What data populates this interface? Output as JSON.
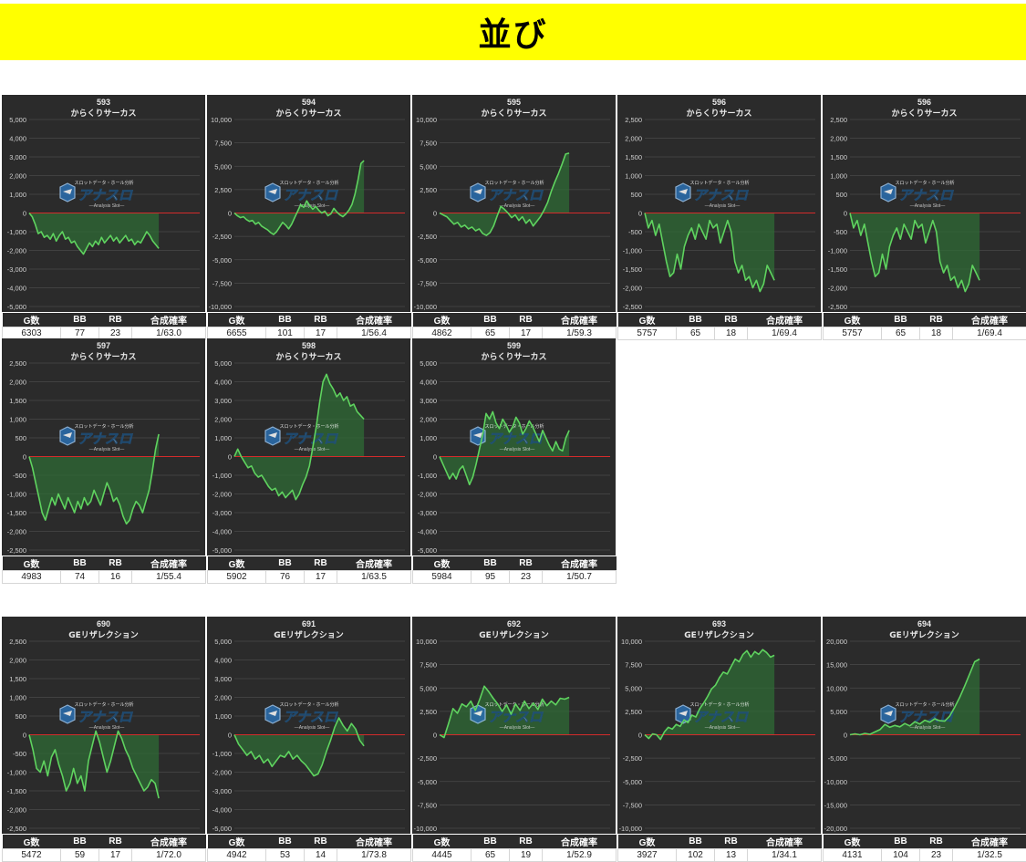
{
  "header": {
    "title": "並び"
  },
  "stats_headers": [
    "G数",
    "BB",
    "RB",
    "合成確率"
  ],
  "watermark": {
    "top": "スロットデータ・ホール分析",
    "main": "アナスロ",
    "sub": "―Analysis Slot―"
  },
  "colors": {
    "panel_bg": "#2b2b2b",
    "grid": "#4a4a4a",
    "line": "#5fd35f",
    "fill": "#2f6b35",
    "zero_line": "#d42b2b",
    "header_bg": "#ffff00"
  },
  "chart_data": [
    {
      "type": "area",
      "number": "593",
      "machine": "からくりサーカス",
      "ylim": [
        -5000,
        5000
      ],
      "yticks": [
        "5,000",
        "4,000",
        "3,000",
        "2,000",
        "1,000",
        "0",
        "-1,000",
        "-2,000",
        "-3,000",
        "-4,000",
        "-5,000"
      ],
      "values": [
        0,
        -200,
        -600,
        -1100,
        -1000,
        -1300,
        -1200,
        -1400,
        -1100,
        -1500,
        -1200,
        -1000,
        -1400,
        -1300,
        -1600,
        -1500,
        -1800,
        -2000,
        -2200,
        -1900,
        -1600,
        -1800,
        -1500,
        -1700,
        -1300,
        -1600,
        -1400,
        -1200,
        -1500,
        -1300,
        -1600,
        -1400,
        -1200,
        -1500,
        -1400,
        -1700,
        -1500,
        -1600,
        -1300,
        -1000,
        -1200,
        -1500,
        -1700,
        -1900
      ],
      "stats": {
        "games": "6303",
        "bb": "77",
        "rb": "23",
        "rate": "1/63.0"
      }
    },
    {
      "type": "area",
      "number": "594",
      "machine": "からくりサーカス",
      "ylim": [
        -10000,
        10000
      ],
      "yticks": [
        "10,000",
        "7,500",
        "5,000",
        "2,500",
        "0",
        "-2,500",
        "-5,000",
        "-7,500",
        "-10,000"
      ],
      "values": [
        0,
        -300,
        -500,
        -400,
        -700,
        -900,
        -800,
        -1200,
        -1000,
        -1400,
        -1600,
        -1800,
        -2100,
        -2300,
        -2000,
        -1500,
        -1000,
        -1300,
        -1700,
        -1200,
        -500,
        200,
        900,
        600,
        1300,
        800,
        400,
        700,
        300,
        0,
        200,
        -300,
        -100,
        500,
        100,
        -200,
        -400,
        -100,
        300,
        900,
        2000,
        3500,
        5300,
        5600
      ],
      "stats": {
        "games": "6655",
        "bb": "101",
        "rb": "17",
        "rate": "1/56.4"
      }
    },
    {
      "type": "area",
      "number": "595",
      "machine": "からくりサーカス",
      "ylim": [
        -10000,
        10000
      ],
      "yticks": [
        "10,000",
        "7,500",
        "5,000",
        "2,500",
        "0",
        "-2,500",
        "-5,000",
        "-7,500",
        "-10,000"
      ],
      "values": [
        0,
        -200,
        -400,
        -800,
        -1200,
        -1000,
        -1500,
        -1300,
        -1700,
        -1500,
        -1900,
        -1700,
        -2200,
        -2400,
        -2100,
        -1400,
        -300,
        700,
        400,
        0,
        -500,
        -200,
        -800,
        -400,
        -1100,
        -700,
        -1400,
        -900,
        -400,
        300,
        1100,
        2300,
        3300,
        4200,
        5200,
        6300,
        6400
      ],
      "stats": {
        "games": "4862",
        "bb": "65",
        "rb": "17",
        "rate": "1/59.3"
      }
    },
    {
      "type": "area",
      "number": "596",
      "machine": "からくりサーカス",
      "ylim": [
        -2500,
        2500
      ],
      "yticks": [
        "2,500",
        "2,000",
        "1,500",
        "1,000",
        "500",
        "0",
        "-500",
        "-1,000",
        "-1,500",
        "-2,000",
        "-2,500"
      ],
      "values": [
        0,
        -400,
        -200,
        -600,
        -300,
        -800,
        -1300,
        -1700,
        -1600,
        -1100,
        -1500,
        -900,
        -600,
        -400,
        -700,
        -300,
        -500,
        -700,
        -200,
        -400,
        -300,
        -800,
        -500,
        -200,
        -500,
        -1300,
        -1600,
        -1400,
        -1800,
        -1700,
        -2000,
        -1800,
        -2100,
        -1900,
        -1400,
        -1600,
        -1800
      ],
      "stats": {
        "games": "5757",
        "bb": "65",
        "rb": "18",
        "rate": "1/69.4"
      }
    },
    {
      "type": "area",
      "number": "596",
      "machine": "からくりサーカス",
      "ylim": [
        -2500,
        2500
      ],
      "yticks": [
        "2,500",
        "2,000",
        "1,500",
        "1,000",
        "500",
        "0",
        "-500",
        "-1,000",
        "-1,500",
        "-2,000",
        "-2,500"
      ],
      "values": [
        0,
        -400,
        -200,
        -600,
        -300,
        -800,
        -1300,
        -1700,
        -1600,
        -1100,
        -1500,
        -900,
        -600,
        -400,
        -700,
        -300,
        -500,
        -700,
        -200,
        -400,
        -300,
        -800,
        -500,
        -200,
        -500,
        -1300,
        -1600,
        -1400,
        -1800,
        -1700,
        -2000,
        -1800,
        -2100,
        -1900,
        -1400,
        -1600,
        -1800
      ],
      "stats": {
        "games": "5757",
        "bb": "65",
        "rb": "18",
        "rate": "1/69.4"
      }
    },
    {
      "type": "area",
      "number": "597",
      "machine": "からくりサーカス",
      "ylim": [
        -2500,
        2500
      ],
      "yticks": [
        "2,500",
        "2,000",
        "1,500",
        "1,000",
        "500",
        "0",
        "-500",
        "-1,000",
        "-1,500",
        "-2,000",
        "-2,500"
      ],
      "values": [
        0,
        -300,
        -700,
        -1100,
        -1500,
        -1700,
        -1400,
        -1100,
        -1300,
        -1000,
        -1200,
        -1400,
        -1100,
        -1300,
        -1500,
        -1200,
        -1400,
        -1100,
        -1300,
        -1200,
        -900,
        -1100,
        -1300,
        -1000,
        -700,
        -900,
        -1200,
        -1100,
        -1300,
        -1600,
        -1800,
        -1700,
        -1400,
        -1200,
        -1300,
        -1500,
        -1200,
        -900,
        -400,
        200,
        600
      ],
      "stats": {
        "games": "4983",
        "bb": "74",
        "rb": "16",
        "rate": "1/55.4"
      }
    },
    {
      "type": "area",
      "number": "598",
      "machine": "からくりサーカス",
      "ylim": [
        -5000,
        5000
      ],
      "yticks": [
        "5,000",
        "4,000",
        "3,000",
        "2,000",
        "1,000",
        "0",
        "-1,000",
        "-2,000",
        "-3,000",
        "-4,000",
        "-5,000"
      ],
      "values": [
        0,
        400,
        0,
        -300,
        -600,
        -500,
        -900,
        -1100,
        -1000,
        -1300,
        -1600,
        -1800,
        -1700,
        -2100,
        -1900,
        -2200,
        -2000,
        -1800,
        -2300,
        -2000,
        -1500,
        -1100,
        -500,
        500,
        1600,
        2900,
        4000,
        4400,
        3900,
        3600,
        3200,
        3400,
        3000,
        3200,
        2700,
        2800,
        2400,
        2200,
        2000
      ],
      "stats": {
        "games": "5902",
        "bb": "76",
        "rb": "17",
        "rate": "1/63.5"
      }
    },
    {
      "type": "area",
      "number": "599",
      "machine": "からくりサーカス",
      "ylim": [
        -5000,
        5000
      ],
      "yticks": [
        "5,000",
        "4,000",
        "3,000",
        "2,000",
        "1,000",
        "0",
        "-1,000",
        "-2,000",
        "-3,000",
        "-4,000",
        "-5,000"
      ],
      "values": [
        0,
        -400,
        -800,
        -1200,
        -900,
        -1200,
        -700,
        -500,
        -1000,
        -1500,
        -1100,
        -400,
        400,
        1200,
        2300,
        2000,
        2400,
        1800,
        1500,
        2000,
        1700,
        1300,
        1600,
        2100,
        1800,
        1200,
        1500,
        1900,
        1600,
        1200,
        800,
        1400,
        1000,
        600,
        300,
        800,
        400,
        300,
        1000,
        1400
      ],
      "stats": {
        "games": "5984",
        "bb": "95",
        "rb": "23",
        "rate": "1/50.7"
      }
    },
    {
      "type": "area",
      "number": "690",
      "machine": "GEリザレクション",
      "ylim": [
        -2500,
        2500
      ],
      "yticks": [
        "2,500",
        "2,000",
        "1,500",
        "1,000",
        "500",
        "0",
        "-500",
        "-1,000",
        "-1,500",
        "-2,000",
        "-2,500"
      ],
      "values": [
        0,
        -400,
        -900,
        -1000,
        -700,
        -1100,
        -600,
        -400,
        -800,
        -1100,
        -1500,
        -1300,
        -900,
        -1300,
        -1100,
        -1500,
        -700,
        -300,
        100,
        -200,
        -600,
        -1000,
        -700,
        -300,
        100,
        -100,
        -400,
        -600,
        -900,
        -1100,
        -1300,
        -1500,
        -1400,
        -1200,
        -1300,
        -1700
      ],
      "stats": {
        "games": "5472",
        "bb": "59",
        "rb": "17",
        "rate": "1/72.0"
      }
    },
    {
      "type": "area",
      "number": "691",
      "machine": "GEリザレクション",
      "ylim": [
        -5000,
        5000
      ],
      "yticks": [
        "5,000",
        "4,000",
        "3,000",
        "2,000",
        "1,000",
        "0",
        "-1,000",
        "-2,000",
        "-3,000",
        "-4,000",
        "-5,000"
      ],
      "values": [
        0,
        -500,
        -800,
        -1100,
        -900,
        -1300,
        -1100,
        -1500,
        -1300,
        -1700,
        -1400,
        -1100,
        -1200,
        -900,
        -1300,
        -1100,
        -1400,
        -1600,
        -1900,
        -2200,
        -2100,
        -1600,
        -900,
        -300,
        400,
        900,
        500,
        200,
        600,
        300,
        -300,
        -600
      ],
      "stats": {
        "games": "4942",
        "bb": "53",
        "rb": "14",
        "rate": "1/73.8"
      }
    },
    {
      "type": "area",
      "number": "692",
      "machine": "GEリザレクション",
      "ylim": [
        -10000,
        10000
      ],
      "yticks": [
        "10,000",
        "7,500",
        "5,000",
        "2,500",
        "0",
        "-2,500",
        "-5,000",
        "-7,500",
        "-10,000"
      ],
      "values": [
        0,
        -300,
        1200,
        2800,
        2300,
        3300,
        3000,
        3600,
        2600,
        3800,
        5200,
        4600,
        3900,
        3300,
        2500,
        3200,
        2200,
        3300,
        2600,
        3600,
        2800,
        3400,
        2700,
        3800,
        3100,
        3600,
        3200,
        3900,
        3800,
        4000
      ],
      "stats": {
        "games": "4445",
        "bb": "65",
        "rb": "19",
        "rate": "1/52.9"
      }
    },
    {
      "type": "area",
      "number": "693",
      "machine": "GEリザレクション",
      "ylim": [
        -10000,
        10000
      ],
      "yticks": [
        "10,000",
        "7,500",
        "5,000",
        "2,500",
        "0",
        "-2,500",
        "-5,000",
        "-7,500",
        "-10,000"
      ],
      "values": [
        0,
        -400,
        100,
        0,
        -500,
        300,
        800,
        600,
        1100,
        900,
        1600,
        1300,
        2100,
        1900,
        2800,
        3400,
        4100,
        4900,
        5300,
        6100,
        6700,
        6500,
        7300,
        8100,
        7800,
        8600,
        9000,
        8300,
        8900,
        8600,
        9100,
        8800,
        8300,
        8500
      ],
      "stats": {
        "games": "3927",
        "bb": "102",
        "rb": "13",
        "rate": "1/34.1"
      }
    },
    {
      "type": "area",
      "number": "694",
      "machine": "GEリザレクション",
      "ylim": [
        -20000,
        20000
      ],
      "yticks": [
        "20,000",
        "15,000",
        "10,000",
        "5,000",
        "0",
        "-5,000",
        "-10,000",
        "-15,000",
        "-20,000"
      ],
      "values": [
        0,
        200,
        0,
        300,
        100,
        600,
        1100,
        2200,
        1600,
        2000,
        1700,
        2400,
        1900,
        2800,
        2300,
        3100,
        2700,
        3400,
        3000,
        2900,
        4000,
        5900,
        8000,
        10400,
        13000,
        15600,
        16200
      ],
      "stats": {
        "games": "4131",
        "bb": "104",
        "rb": "23",
        "rate": "1/32.5"
      }
    }
  ]
}
